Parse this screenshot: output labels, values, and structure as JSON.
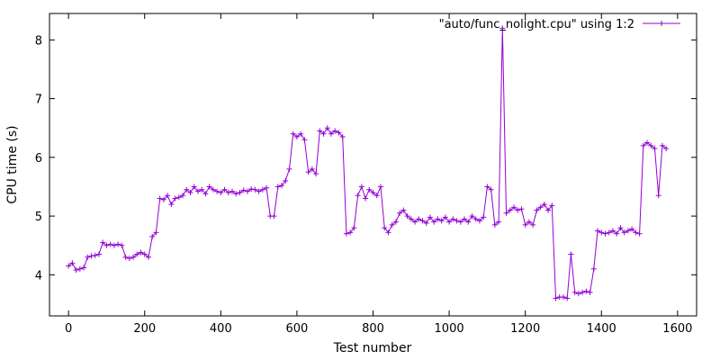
{
  "chart_data": {
    "type": "line",
    "title": "",
    "xlabel": "Test number",
    "ylabel": "CPU time (s)",
    "xlim": [
      -50,
      1650
    ],
    "ylim": [
      3.3,
      8.45
    ],
    "xticks": [
      0,
      200,
      400,
      600,
      800,
      1000,
      1200,
      1400,
      1600
    ],
    "yticks": [
      4,
      5,
      6,
      7,
      8
    ],
    "xtick_labels": [
      "0",
      "200",
      "400",
      "600",
      "800",
      "1000",
      "1200",
      "1400",
      "1600"
    ],
    "ytick_labels": [
      "4",
      "5",
      "6",
      "7",
      "8"
    ],
    "grid": false,
    "legend": {
      "position": "top-right"
    },
    "series": [
      {
        "name": "\"auto/func_nolight.cpu\" using 1:2",
        "color": "#9400d3",
        "marker": "plus",
        "x": [
          0,
          10,
          20,
          30,
          40,
          50,
          60,
          70,
          80,
          90,
          100,
          110,
          120,
          130,
          140,
          150,
          160,
          170,
          180,
          190,
          200,
          210,
          220,
          230,
          240,
          250,
          260,
          270,
          280,
          290,
          300,
          310,
          320,
          330,
          340,
          350,
          360,
          370,
          380,
          390,
          400,
          410,
          420,
          430,
          440,
          450,
          460,
          470,
          480,
          490,
          500,
          510,
          520,
          530,
          540,
          550,
          560,
          570,
          580,
          590,
          600,
          610,
          620,
          630,
          640,
          650,
          660,
          670,
          680,
          690,
          700,
          710,
          720,
          730,
          740,
          750,
          760,
          770,
          780,
          790,
          800,
          810,
          820,
          830,
          840,
          850,
          860,
          870,
          880,
          890,
          900,
          910,
          920,
          930,
          940,
          950,
          960,
          970,
          980,
          990,
          1000,
          1010,
          1020,
          1030,
          1040,
          1050,
          1060,
          1070,
          1080,
          1090,
          1100,
          1110,
          1120,
          1130,
          1140,
          1150,
          1160,
          1170,
          1180,
          1190,
          1200,
          1210,
          1220,
          1230,
          1240,
          1250,
          1260,
          1270,
          1280,
          1290,
          1300,
          1310,
          1320,
          1330,
          1340,
          1350,
          1360,
          1370,
          1380,
          1390,
          1400,
          1410,
          1420,
          1430,
          1440,
          1450,
          1460,
          1470,
          1480,
          1490,
          1500,
          1510,
          1520,
          1530,
          1540,
          1550,
          1560,
          1570
        ],
        "y": [
          4.15,
          4.2,
          4.08,
          4.1,
          4.12,
          4.3,
          4.32,
          4.33,
          4.35,
          4.55,
          4.5,
          4.52,
          4.5,
          4.52,
          4.5,
          4.3,
          4.28,
          4.3,
          4.35,
          4.38,
          4.35,
          4.3,
          4.65,
          4.72,
          5.3,
          5.28,
          5.35,
          5.2,
          5.3,
          5.32,
          5.35,
          5.45,
          5.4,
          5.5,
          5.42,
          5.45,
          5.38,
          5.5,
          5.45,
          5.42,
          5.4,
          5.45,
          5.4,
          5.42,
          5.38,
          5.4,
          5.44,
          5.42,
          5.46,
          5.45,
          5.42,
          5.45,
          5.48,
          5.0,
          5.0,
          5.5,
          5.52,
          5.6,
          5.8,
          6.4,
          6.35,
          6.4,
          6.3,
          5.75,
          5.8,
          5.72,
          6.45,
          6.4,
          6.5,
          6.4,
          6.45,
          6.42,
          6.35,
          4.7,
          4.72,
          4.8,
          5.35,
          5.5,
          5.3,
          5.45,
          5.4,
          5.35,
          5.5,
          4.8,
          4.72,
          4.85,
          4.9,
          5.05,
          5.1,
          5.0,
          4.95,
          4.9,
          4.95,
          4.92,
          4.88,
          4.98,
          4.9,
          4.95,
          4.92,
          4.98,
          4.9,
          4.95,
          4.92,
          4.9,
          4.95,
          4.9,
          5.0,
          4.95,
          4.92,
          4.98,
          5.5,
          5.45,
          4.85,
          4.9,
          8.2,
          5.05,
          5.1,
          5.15,
          5.1,
          5.12,
          4.85,
          4.9,
          4.85,
          5.1,
          5.15,
          5.2,
          5.1,
          5.18,
          3.6,
          3.62,
          3.62,
          3.6,
          4.35,
          3.7,
          3.68,
          3.7,
          3.72,
          3.7,
          4.1,
          4.75,
          4.72,
          4.7,
          4.72,
          4.75,
          4.7,
          4.8,
          4.72,
          4.75,
          4.78,
          4.72,
          4.7,
          6.2,
          6.25,
          6.2,
          6.15,
          5.35,
          6.2,
          6.15
        ]
      }
    ]
  }
}
